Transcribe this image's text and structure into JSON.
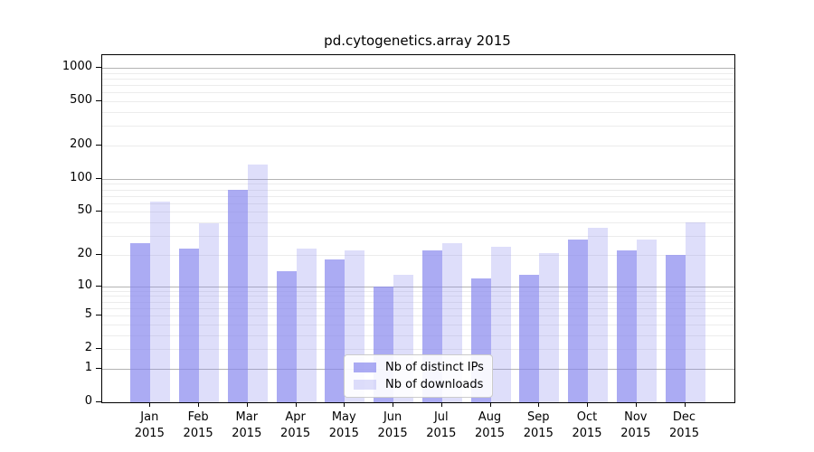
{
  "title": "pd.cytogenetics.array 2015",
  "legend": {
    "items": [
      {
        "label": "Nb of distinct IPs",
        "swatch_color": "rgba(136,136,238,0.70)"
      },
      {
        "label": "Nb of downloads",
        "swatch_color": "rgba(136,136,238,0.28)"
      }
    ],
    "position": "lower-center"
  },
  "colors": {
    "bar_base": "#8888ee",
    "grid_minor": "#ececec",
    "grid_major": "#b3b3b3",
    "axis": "#000000"
  },
  "chart_data": {
    "type": "bar",
    "title": "pd.cytogenetics.array 2015",
    "categories": [
      "Jan 2015",
      "Feb 2015",
      "Mar 2015",
      "Apr 2015",
      "May 2015",
      "Jun 2015",
      "Jul 2015",
      "Aug 2015",
      "Sep 2015",
      "Oct 2015",
      "Nov 2015",
      "Dec 2015"
    ],
    "series": [
      {
        "name": "Nb of distinct IPs",
        "color": "rgba(136,136,238,0.70)",
        "values": [
          26,
          23,
          80,
          14,
          18,
          10,
          22,
          12,
          13,
          28,
          22,
          20
        ]
      },
      {
        "name": "Nb of downloads",
        "color": "rgba(136,136,238,0.28)",
        "values": [
          62,
          39,
          135,
          23,
          22,
          13,
          26,
          24,
          21,
          36,
          28,
          40
        ]
      }
    ],
    "xlabel": "",
    "ylabel": "",
    "yscale": "log1p",
    "y_ticks": [
      0,
      1,
      2,
      5,
      10,
      20,
      50,
      100,
      200,
      500,
      1000
    ],
    "grid_major_values": [
      1,
      10,
      100,
      1000
    ],
    "grid_minor_values": [
      2,
      3,
      4,
      5,
      6,
      7,
      8,
      9,
      20,
      30,
      40,
      50,
      60,
      70,
      80,
      90,
      200,
      300,
      400,
      500,
      600,
      700,
      800,
      900
    ],
    "ylim": [
      0,
      1200
    ],
    "grid": "on",
    "legend_position": "lower-center"
  }
}
